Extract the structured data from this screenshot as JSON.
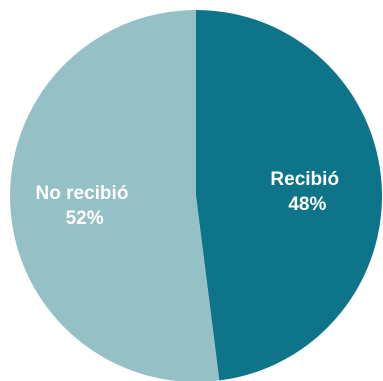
{
  "chart_data": {
    "type": "pie",
    "slices": [
      {
        "label": "Recibió",
        "value": 48,
        "value_label": "48%",
        "color": "#0e7489"
      },
      {
        "label": "No recibió",
        "value": 52,
        "value_label": "52%",
        "color": "#94c0c6"
      }
    ],
    "start": "top",
    "direction": "clockwise"
  }
}
